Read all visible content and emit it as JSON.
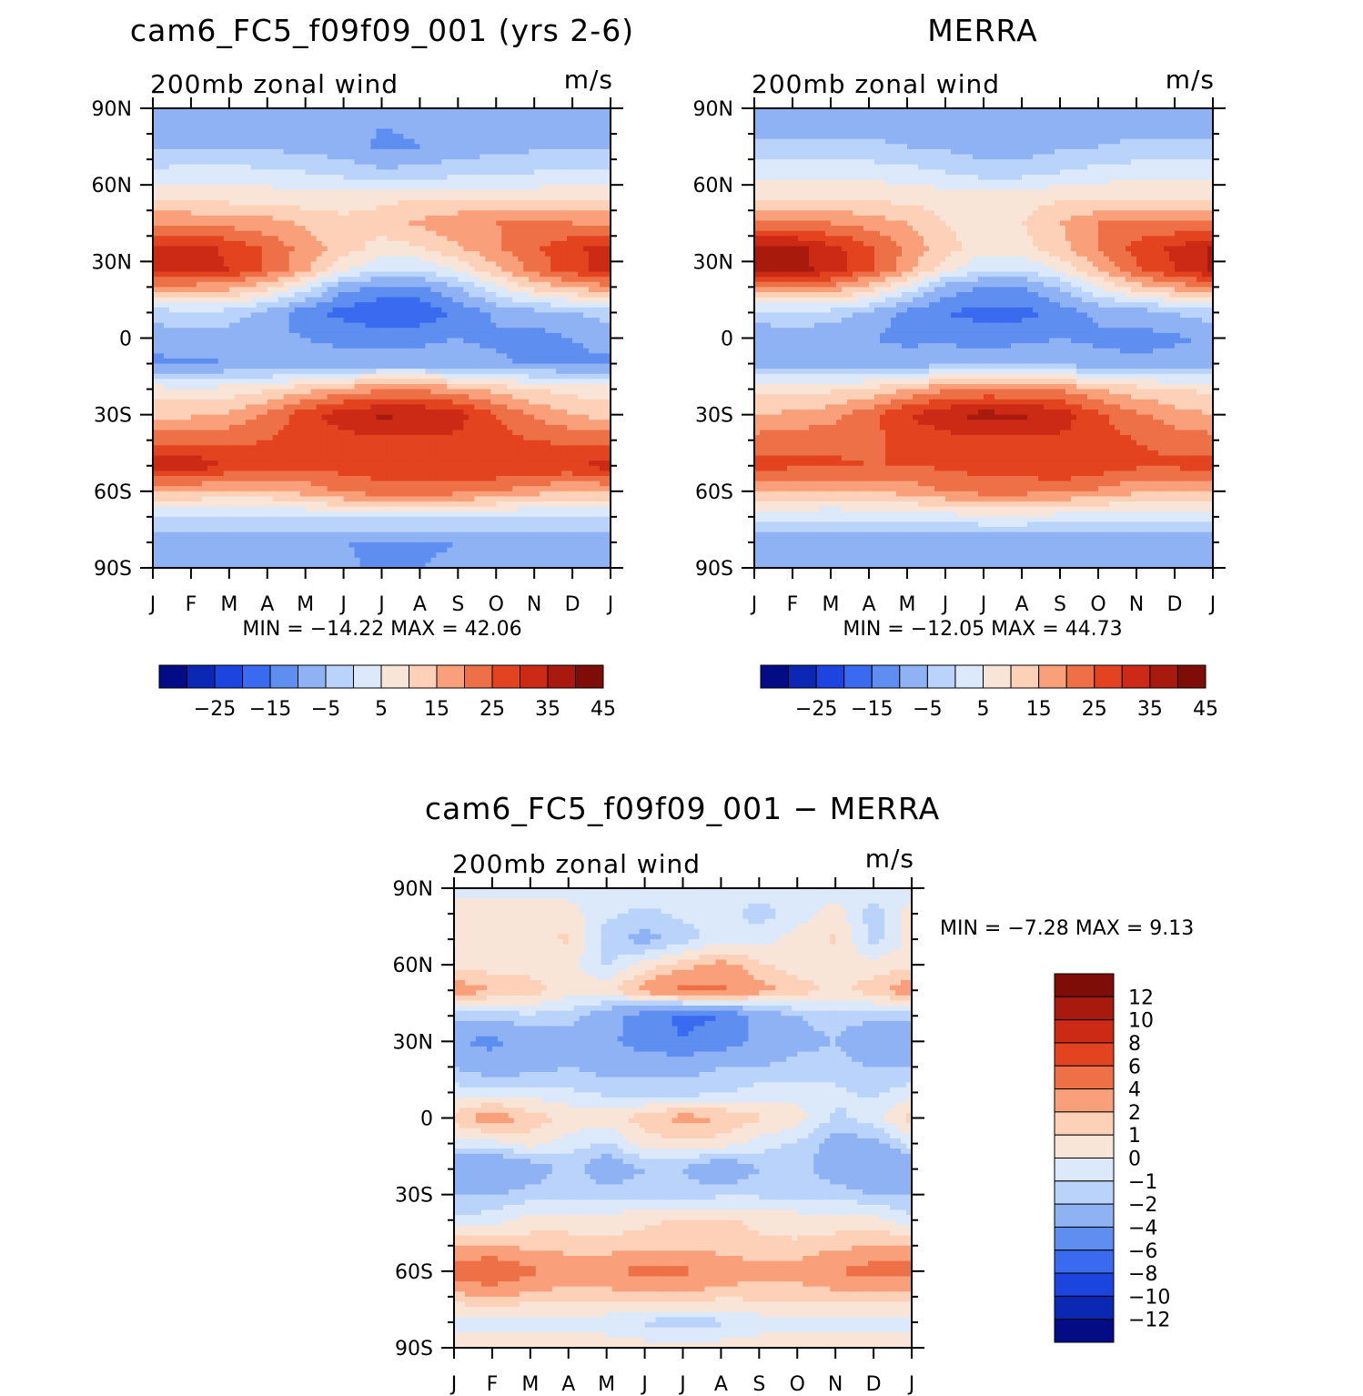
{
  "colors": {
    "ax": [
      "#f9e5d8",
      "#fdd1b8",
      "#f9a07a",
      "#ee7047",
      "#e3431f",
      "#cd2a15",
      "#a81a0e"
    ],
    "cooler": [
      "#dbe9fb",
      "#b9d3fa",
      "#8eb2f4",
      "#5d8ef0",
      "#3a6aef",
      "#1b45de",
      "#0b28b4"
    ],
    "extremes": {
      "warm": "#7f0d07",
      "cold": "#030b85"
    },
    "neutral": "#ffffff"
  },
  "months": [
    "J",
    "F",
    "M",
    "A",
    "M",
    "J",
    "J",
    "A",
    "S",
    "O",
    "N",
    "D",
    "J"
  ],
  "lat_labels": [
    "90N",
    "60N",
    "30N",
    "0",
    "30S",
    "60S",
    "90S"
  ],
  "chart_data": [
    {
      "type": "heatmap",
      "id": "model",
      "title": "cam6_FC5_f09f09_001 (yrs 2-6)",
      "field_label": "200mb zonal wind",
      "units": "m/s",
      "stats_text": "MIN = −14.22 MAX =   42.06",
      "min": -14.22,
      "max": 42.06,
      "x_axis": "month (J to J)",
      "y_axis": "latitude (90N to 90S)",
      "ylim": [
        -90,
        90
      ],
      "levels": [
        -30,
        -25,
        -20,
        -15,
        -10,
        -5,
        0,
        5,
        10,
        15,
        20,
        25,
        30,
        35,
        40,
        45,
        50
      ],
      "colorbar_ticks": [
        "−25",
        "−15",
        "−5",
        "5",
        "15",
        "25",
        "35",
        "45"
      ],
      "field": [
        {
          "lat": 90,
          "values": [
            -4,
            -4,
            -4,
            -4,
            -4,
            -4,
            -4,
            -4,
            -4,
            -4,
            -4,
            -4,
            -4
          ]
        },
        {
          "lat": 75,
          "values": [
            -1,
            -1,
            -1,
            -1,
            -2,
            -3,
            -6,
            -5,
            -3,
            -2,
            -1,
            -1,
            -1
          ]
        },
        {
          "lat": 65,
          "values": [
            6,
            7,
            7,
            6,
            5,
            3,
            1,
            2,
            3,
            4,
            5,
            6,
            6
          ]
        },
        {
          "lat": 55,
          "values": [
            14,
            14,
            13,
            13,
            12,
            13,
            14,
            14,
            14,
            13,
            13,
            14,
            14
          ]
        },
        {
          "lat": 45,
          "values": [
            24,
            24,
            23,
            22,
            19,
            16,
            17,
            21,
            24,
            25,
            25,
            25,
            24
          ]
        },
        {
          "lat": 35,
          "values": [
            36,
            37,
            34,
            29,
            23,
            17,
            13,
            14,
            19,
            24,
            29,
            34,
            37
          ]
        },
        {
          "lat": 27,
          "values": [
            37,
            38,
            35,
            29,
            21,
            11,
            6,
            6,
            11,
            19,
            27,
            33,
            37
          ]
        },
        {
          "lat": 20,
          "values": [
            24,
            23,
            22,
            17,
            8,
            -3,
            -6,
            -6,
            0,
            9,
            17,
            21,
            24
          ]
        },
        {
          "lat": 10,
          "values": [
            2,
            4,
            3,
            -2,
            -8,
            -12,
            -15,
            -14,
            -9,
            -4,
            -2,
            0,
            2
          ]
        },
        {
          "lat": 0,
          "values": [
            -3,
            -2,
            -3,
            -4,
            -5,
            -6,
            -7,
            -6,
            -5,
            -6,
            -7,
            -5,
            -3
          ]
        },
        {
          "lat": -10,
          "values": [
            -6,
            -6,
            -5,
            -5,
            -4,
            -3,
            -3,
            -3,
            -3,
            -4,
            -6,
            -6,
            -6
          ]
        },
        {
          "lat": -20,
          "values": [
            12,
            11,
            12,
            14,
            18,
            22,
            24,
            24,
            22,
            18,
            15,
            13,
            12
          ]
        },
        {
          "lat": -30,
          "values": [
            18,
            19,
            21,
            26,
            33,
            38,
            41,
            40,
            37,
            30,
            24,
            20,
            18
          ]
        },
        {
          "lat": -40,
          "values": [
            28,
            29,
            29,
            30,
            32,
            33,
            34,
            34,
            34,
            32,
            30,
            29,
            28
          ]
        },
        {
          "lat": -50,
          "values": [
            38,
            39,
            34,
            32,
            31,
            32,
            33,
            33,
            34,
            35,
            34,
            34,
            38
          ]
        },
        {
          "lat": -60,
          "values": [
            20,
            20,
            19,
            19,
            22,
            26,
            28,
            28,
            27,
            25,
            22,
            20,
            20
          ]
        },
        {
          "lat": -70,
          "values": [
            4,
            4,
            4,
            4,
            5,
            6,
            6,
            6,
            6,
            5,
            4,
            4,
            4
          ]
        },
        {
          "lat": -80,
          "values": [
            -4,
            -4,
            -4,
            -4,
            -4,
            -5,
            -6,
            -6,
            -5,
            -4,
            -4,
            -4,
            -4
          ]
        },
        {
          "lat": -90,
          "values": [
            -4,
            -4,
            -4,
            -4,
            -4,
            -4,
            -6,
            -5,
            -4,
            -4,
            -4,
            -4,
            -4
          ]
        }
      ]
    },
    {
      "type": "heatmap",
      "id": "obs",
      "title": "MERRA",
      "field_label": "200mb zonal wind",
      "units": "m/s",
      "stats_text": "MIN = −12.05 MAX =   44.73",
      "min": -12.05,
      "max": 44.73,
      "x_axis": "month (J to J)",
      "y_axis": "latitude (90N to 90S)",
      "ylim": [
        -90,
        90
      ],
      "levels": [
        -30,
        -25,
        -20,
        -15,
        -10,
        -5,
        0,
        5,
        10,
        15,
        20,
        25,
        30,
        35,
        40,
        45,
        50
      ],
      "colorbar_ticks": [
        "−25",
        "−15",
        "−5",
        "5",
        "15",
        "25",
        "35",
        "45"
      ],
      "field": [
        {
          "lat": 90,
          "values": [
            -4,
            -4,
            -4,
            -4,
            -4,
            -4,
            -4,
            -4,
            -4,
            -4,
            -4,
            -4,
            -4
          ]
        },
        {
          "lat": 75,
          "values": [
            1,
            1,
            1,
            1,
            0,
            -1,
            -3,
            -3,
            -1,
            0,
            1,
            1,
            1
          ]
        },
        {
          "lat": 65,
          "values": [
            8,
            8,
            8,
            8,
            7,
            5,
            3,
            3,
            5,
            7,
            8,
            8,
            8
          ]
        },
        {
          "lat": 55,
          "values": [
            14,
            14,
            14,
            14,
            13,
            13,
            12,
            13,
            14,
            14,
            14,
            14,
            14
          ]
        },
        {
          "lat": 45,
          "values": [
            26,
            26,
            25,
            23,
            20,
            15,
            13,
            15,
            20,
            25,
            26,
            26,
            26
          ]
        },
        {
          "lat": 35,
          "values": [
            41,
            42,
            37,
            31,
            24,
            17,
            12,
            13,
            18,
            25,
            32,
            36,
            41
          ]
        },
        {
          "lat": 27,
          "values": [
            41,
            42,
            38,
            31,
            22,
            12,
            5,
            5,
            11,
            20,
            29,
            35,
            41
          ]
        },
        {
          "lat": 20,
          "values": [
            25,
            24,
            24,
            18,
            9,
            -2,
            -5,
            -5,
            1,
            10,
            18,
            22,
            25
          ]
        },
        {
          "lat": 10,
          "values": [
            3,
            4,
            3,
            -1,
            -7,
            -10,
            -12,
            -12,
            -8,
            -4,
            -3,
            0,
            3
          ]
        },
        {
          "lat": 0,
          "values": [
            -4,
            -3,
            -4,
            -5,
            -6,
            -6,
            -7,
            -6,
            -5,
            -6,
            -7,
            -6,
            -4
          ]
        },
        {
          "lat": -10,
          "values": [
            -3,
            -3,
            -3,
            -3,
            -3,
            -2,
            -2,
            -2,
            -2,
            -3,
            -4,
            -3,
            -3
          ]
        },
        {
          "lat": -20,
          "values": [
            14,
            13,
            14,
            16,
            20,
            24,
            25,
            25,
            24,
            20,
            17,
            15,
            14
          ]
        },
        {
          "lat": -30,
          "values": [
            20,
            21,
            23,
            28,
            35,
            39,
            42,
            41,
            38,
            31,
            26,
            22,
            20
          ]
        },
        {
          "lat": -40,
          "values": [
            27,
            28,
            28,
            29,
            31,
            33,
            34,
            34,
            34,
            32,
            30,
            28,
            27
          ]
        },
        {
          "lat": -50,
          "values": [
            32,
            31,
            31,
            30,
            30,
            31,
            32,
            32,
            35,
            33,
            31,
            31,
            32
          ]
        },
        {
          "lat": -60,
          "values": [
            20,
            20,
            19,
            20,
            22,
            25,
            27,
            27,
            26,
            24,
            21,
            20,
            20
          ]
        },
        {
          "lat": -70,
          "values": [
            6,
            6,
            6,
            6,
            7,
            8,
            9,
            9,
            8,
            7,
            6,
            6,
            6
          ]
        },
        {
          "lat": -80,
          "values": [
            -3,
            -3,
            -3,
            -3,
            -3,
            -4,
            -4,
            -4,
            -4,
            -3,
            -3,
            -3,
            -3
          ]
        },
        {
          "lat": -90,
          "values": [
            -4,
            -4,
            -4,
            -4,
            -4,
            -4,
            -4,
            -4,
            -4,
            -4,
            -4,
            -4,
            -4
          ]
        }
      ]
    },
    {
      "type": "heatmap",
      "id": "diff",
      "title": "cam6_FC5_f09f09_001 − MERRA",
      "field_label": "200mb zonal wind",
      "units": "m/s",
      "stats_text": "MIN =   −7.28 MAX =    9.13",
      "min": -7.28,
      "max": 9.13,
      "x_axis": "month (J to J)",
      "y_axis": "latitude (90N to 90S)",
      "ylim": [
        -90,
        90
      ],
      "levels": [
        -14,
        -12,
        -10,
        -8,
        -6,
        -4,
        -2,
        -1,
        0,
        1,
        2,
        4,
        6,
        8,
        10,
        12,
        14
      ],
      "colorbar_ticks": [
        "12",
        "10",
        "8",
        "6",
        "4",
        "2",
        "1",
        "0",
        "−1",
        "−2",
        "−4",
        "−6",
        "−8",
        "−10",
        "−12"
      ],
      "field": [
        {
          "lat": 90,
          "values": [
            -0.5,
            -0.5,
            -0.5,
            -0.5,
            -0.5,
            -0.5,
            -0.5,
            -0.5,
            -0.5,
            -0.5,
            -0.5,
            -0.5,
            -0.5
          ]
        },
        {
          "lat": 80,
          "values": [
            0.5,
            0.5,
            0.8,
            0.5,
            -0.8,
            -1.2,
            -0.8,
            -0.5,
            -1.5,
            -0.5,
            0.5,
            -1.5,
            0.5
          ]
        },
        {
          "lat": 70,
          "values": [
            0.5,
            0.8,
            0.5,
            1.2,
            -1.5,
            -2.5,
            -1.5,
            -0.5,
            -0.5,
            0.5,
            1.2,
            -1.5,
            0.5
          ]
        },
        {
          "lat": 60,
          "values": [
            0.5,
            0.5,
            0.5,
            0.5,
            -1.2,
            0.5,
            1.5,
            2.5,
            1.2,
            0.5,
            0.5,
            0.5,
            0.5
          ]
        },
        {
          "lat": 50,
          "values": [
            3,
            2,
            1.5,
            0.5,
            0.8,
            2.5,
            4.5,
            4.5,
            2.5,
            1.5,
            0.8,
            1.5,
            3
          ]
        },
        {
          "lat": 40,
          "values": [
            -1.5,
            -1.5,
            -1.2,
            -1.5,
            -3,
            -5,
            -6.5,
            -6,
            -3,
            -2,
            -1.5,
            -1.5,
            -1.5
          ]
        },
        {
          "lat": 30,
          "values": [
            -4,
            -4.5,
            -3,
            -2.5,
            -3.5,
            -5,
            -6,
            -5,
            -3.5,
            -2.5,
            -2,
            -3.5,
            -4
          ]
        },
        {
          "lat": 20,
          "values": [
            -2,
            -3,
            -2.5,
            -2,
            -2.5,
            -2.5,
            -2.5,
            -2,
            -2,
            -1.5,
            -1.5,
            -2,
            -2
          ]
        },
        {
          "lat": 10,
          "values": [
            -0.5,
            -0.5,
            -0.5,
            -0.8,
            -1.2,
            -1.5,
            -1.5,
            -1.2,
            -0.5,
            -0.5,
            -0.8,
            -1.2,
            -0.5
          ]
        },
        {
          "lat": 0,
          "values": [
            1.5,
            3,
            1.5,
            0.8,
            0.5,
            1.5,
            2.5,
            2,
            1.2,
            0.5,
            -1.2,
            -0.5,
            1.5
          ]
        },
        {
          "lat": -10,
          "values": [
            -0.5,
            -0.5,
            0.5,
            -0.5,
            -1.2,
            0.5,
            0.8,
            0.5,
            -0.5,
            -1.2,
            -2.5,
            -2.5,
            -0.5
          ]
        },
        {
          "lat": -20,
          "values": [
            -4,
            -4,
            -3,
            -1.5,
            -3,
            -2,
            -2,
            -3.5,
            -2,
            -1.5,
            -3,
            -4,
            -4
          ]
        },
        {
          "lat": -30,
          "values": [
            -2,
            -2,
            -1.5,
            -1.2,
            -1.5,
            -1.5,
            -1.5,
            -1.2,
            -1.2,
            -1.2,
            -1.2,
            -2,
            -2
          ]
        },
        {
          "lat": -40,
          "values": [
            -0.8,
            -0.5,
            0.5,
            0.5,
            0.5,
            0.8,
            1.2,
            1.2,
            0.8,
            0.5,
            0.5,
            0.5,
            -0.8
          ]
        },
        {
          "lat": -50,
          "values": [
            2,
            2,
            1.5,
            1.5,
            1.2,
            1.5,
            1.5,
            1.5,
            1.2,
            1.2,
            1.5,
            2,
            2
          ]
        },
        {
          "lat": -60,
          "values": [
            5,
            6.5,
            4.5,
            3,
            3.5,
            5,
            4.5,
            3,
            2.5,
            2.5,
            4,
            5,
            5
          ]
        },
        {
          "lat": -70,
          "values": [
            1.5,
            2,
            1.5,
            1.2,
            1.2,
            1.5,
            1.5,
            1.2,
            1.2,
            1.2,
            1.2,
            1.5,
            1.5
          ]
        },
        {
          "lat": -80,
          "values": [
            -0.5,
            -0.5,
            -0.5,
            -0.5,
            -0.5,
            -1.2,
            -1.5,
            -1.2,
            -0.5,
            -0.5,
            -0.5,
            -0.5,
            -0.5
          ]
        },
        {
          "lat": -90,
          "values": [
            0.5,
            0.5,
            0.5,
            0.5,
            0.5,
            0.5,
            0.5,
            0.5,
            0.5,
            0.5,
            0.5,
            0.5,
            0.5
          ]
        }
      ]
    }
  ]
}
